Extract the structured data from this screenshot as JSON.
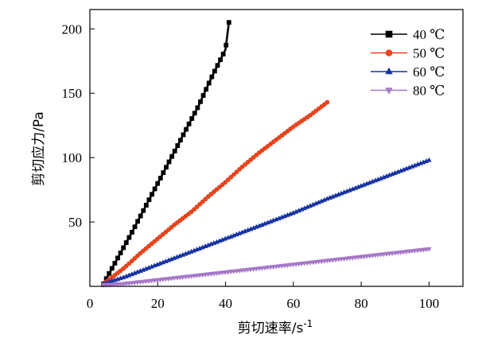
{
  "chart_data": {
    "type": "scatter",
    "xlabel": "剪切速率/s",
    "xlabel_sup": "-1",
    "ylabel": "剪切应力/Pa",
    "xlim": [
      0,
      110
    ],
    "ylim": [
      0,
      215
    ],
    "x_ticks": [
      0,
      20,
      40,
      60,
      80,
      100
    ],
    "y_ticks": [
      50,
      100,
      150,
      200
    ],
    "legend_position": "top-right",
    "series": [
      {
        "name": "40 ℃",
        "color": "#000000",
        "marker": "square",
        "x": [
          4,
          8,
          12,
          16,
          20,
          24,
          28,
          32,
          36,
          40,
          41
        ],
        "y": [
          2,
          21,
          40,
          60,
          80,
          100,
          120,
          140,
          163,
          184,
          205
        ]
      },
      {
        "name": "50 ℃",
        "color": "#e8431c",
        "marker": "circle",
        "x": [
          4,
          10,
          15,
          20,
          25,
          30,
          35,
          40,
          45,
          50,
          55,
          60,
          65,
          70
        ],
        "y": [
          2,
          14,
          26,
          37,
          48,
          58,
          70,
          81,
          93,
          104,
          114,
          124,
          133,
          143
        ]
      },
      {
        "name": "60 ℃",
        "color": "#1732a3",
        "marker": "triangle-up",
        "x": [
          4,
          10,
          20,
          30,
          40,
          50,
          60,
          70,
          80,
          90,
          100
        ],
        "y": [
          2,
          7,
          17,
          27,
          37,
          47,
          57,
          68,
          78,
          88,
          98
        ]
      },
      {
        "name": "80 ℃",
        "color": "#a778c8",
        "marker": "triangle-down",
        "x": [
          4,
          10,
          20,
          30,
          40,
          50,
          60,
          70,
          80,
          90,
          100
        ],
        "y": [
          1,
          2,
          5,
          8,
          11,
          14,
          17,
          20,
          23,
          26,
          29
        ]
      }
    ]
  }
}
